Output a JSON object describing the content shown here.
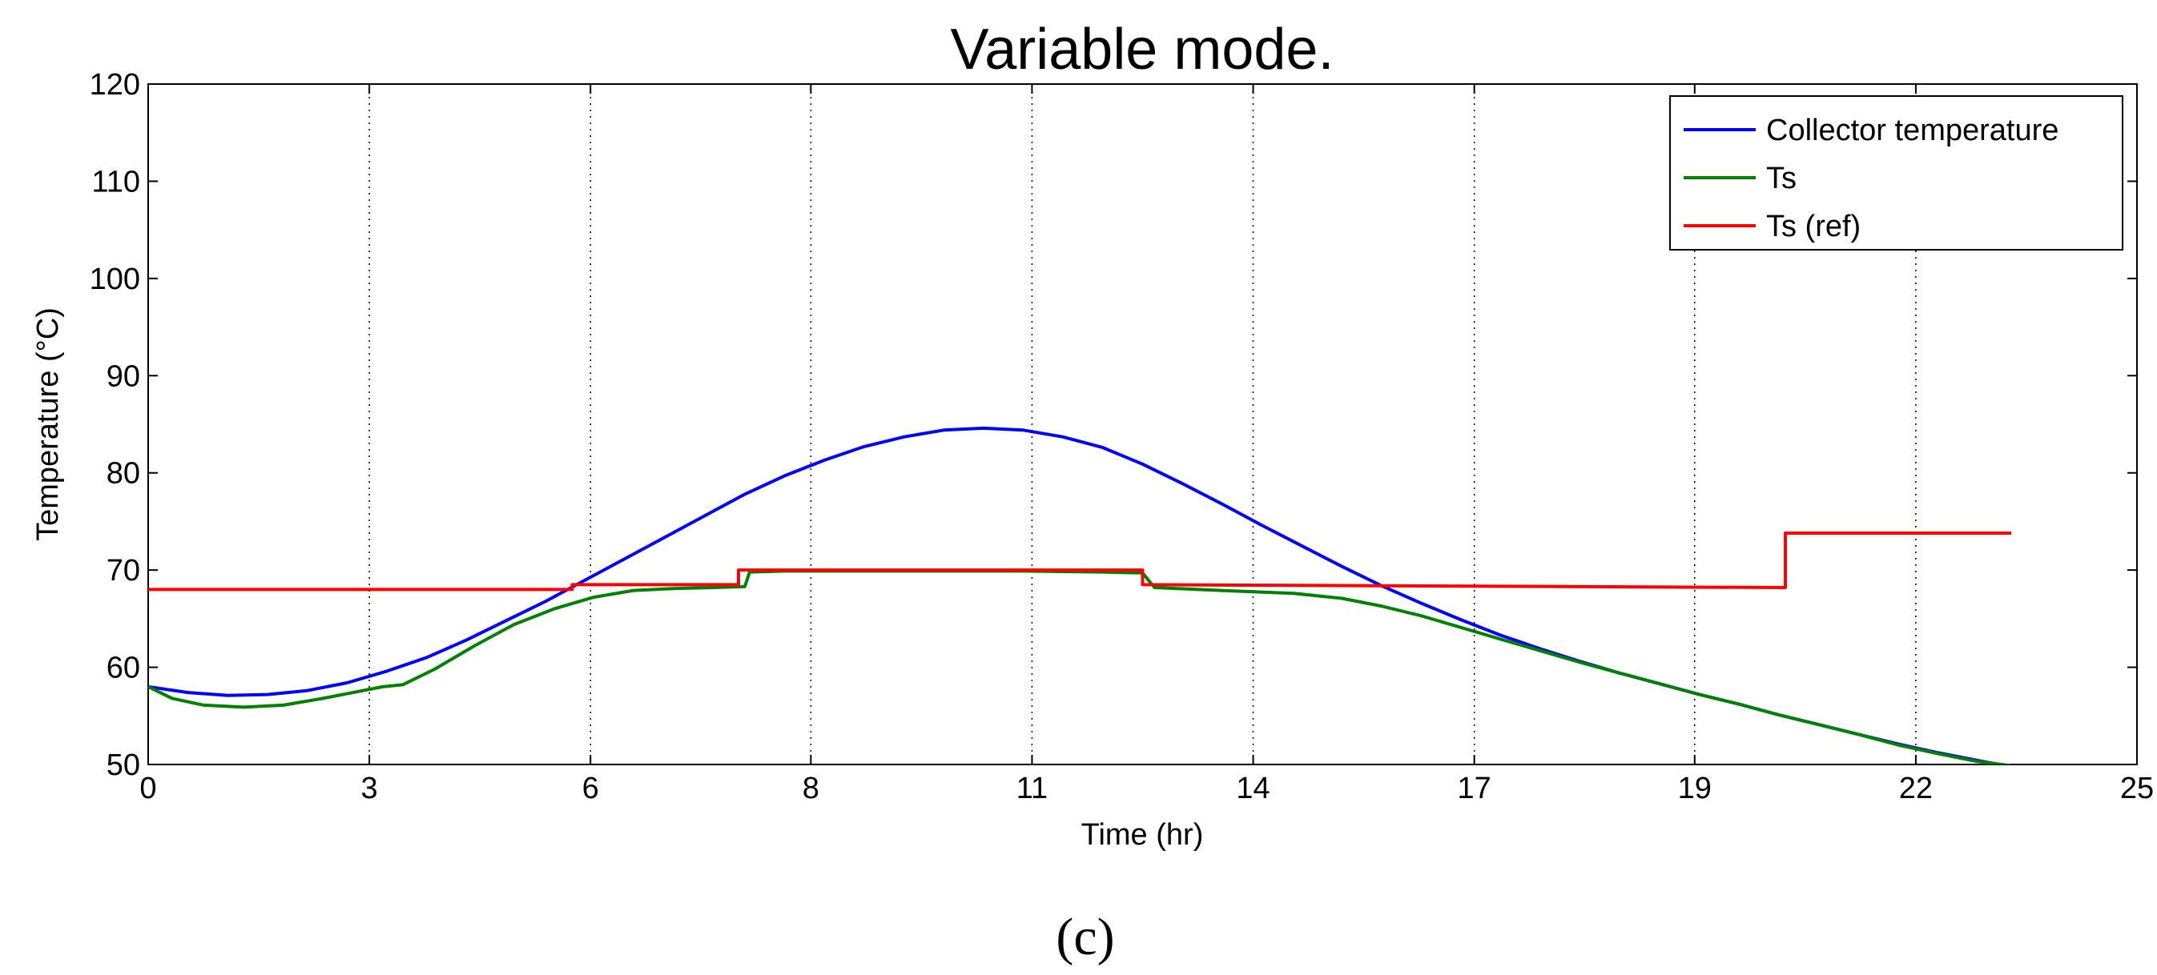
{
  "chart_data": {
    "type": "line",
    "title": "Variable mode.",
    "xlabel": "Time (hr)",
    "ylabel": "Temperature (°C)",
    "xlim": [
      0,
      25
    ],
    "ylim": [
      50,
      120
    ],
    "xticks": [
      0,
      2.78,
      5.56,
      8.33,
      11.11,
      13.89,
      16.67,
      19.44,
      22.22,
      25
    ],
    "xtick_labels": [
      "0",
      "3",
      "6",
      "8",
      "11",
      "14",
      "17",
      "19",
      "22",
      "25"
    ],
    "yticks": [
      50,
      60,
      70,
      80,
      90,
      100,
      110,
      120
    ],
    "ytick_labels": [
      "50",
      "60",
      "70",
      "80",
      "90",
      "100",
      "110",
      "120"
    ],
    "grid": "vertical-dotted",
    "legend_position": "top-right",
    "series": [
      {
        "name": "Collector temperature",
        "color": "#0000ff",
        "x": [
          0,
          0.5,
          1,
          1.5,
          2,
          2.5,
          3,
          3.5,
          4,
          4.5,
          5,
          5.5,
          6,
          6.5,
          7,
          7.5,
          8,
          8.5,
          9,
          9.5,
          10,
          10.5,
          11,
          11.5,
          12,
          12.5,
          13,
          13.5,
          14,
          14.5,
          15,
          15.5,
          16,
          16.5,
          17,
          17.5,
          18,
          18.5,
          19,
          19.5,
          20,
          20.5,
          21,
          21.5,
          22,
          22.5,
          23,
          23.4
        ],
        "y": [
          58,
          57.4,
          57.1,
          57.2,
          57.6,
          58.4,
          59.6,
          61,
          62.8,
          64.8,
          66.8,
          69,
          71.2,
          73.4,
          75.6,
          77.8,
          79.7,
          81.3,
          82.7,
          83.7,
          84.4,
          84.6,
          84.4,
          83.7,
          82.6,
          80.9,
          78.9,
          76.8,
          74.6,
          72.5,
          70.4,
          68.4,
          66.6,
          64.9,
          63.3,
          61.9,
          60.6,
          59.4,
          58.3,
          57.2,
          56.2,
          55.1,
          54.1,
          53.1,
          52.1,
          51.2,
          50.4,
          49.8
        ]
      },
      {
        "name": "Ts",
        "color": "#008000",
        "x": [
          0,
          0.3,
          0.7,
          1.2,
          1.7,
          2.2,
          2.7,
          2.95,
          3.2,
          3.6,
          4.1,
          4.6,
          5.1,
          5.6,
          6.1,
          6.6,
          7.1,
          7.5,
          7.56,
          8,
          9,
          10,
          11,
          12,
          12.5,
          12.65,
          13.2,
          13.8,
          14.4,
          15,
          15.5,
          16,
          16.5,
          17,
          17.5,
          18,
          18.5,
          19,
          19.5,
          20,
          20.5,
          21,
          21.5,
          22,
          22.5,
          23,
          23.4
        ],
        "y": [
          58,
          56.8,
          56.1,
          55.9,
          56.1,
          56.8,
          57.6,
          58,
          58.2,
          59.8,
          62.2,
          64.4,
          66,
          67.2,
          67.9,
          68.1,
          68.2,
          68.3,
          69.8,
          69.9,
          69.9,
          69.9,
          69.9,
          69.8,
          69.7,
          68.2,
          68,
          67.8,
          67.6,
          67.1,
          66.3,
          65.3,
          64.1,
          62.9,
          61.7,
          60.5,
          59.4,
          58.3,
          57.2,
          56.2,
          55.1,
          54.1,
          53.1,
          52,
          51.1,
          50.3,
          49.9
        ]
      },
      {
        "name": "Ts (ref)",
        "color": "#ff0000",
        "x": [
          0,
          5.33,
          5.33,
          7.42,
          7.42,
          12.5,
          12.5,
          20.58,
          20.58,
          23.42
        ],
        "y": [
          68,
          68,
          68.5,
          68.5,
          70,
          70,
          68.5,
          68.2,
          73.8,
          73.8
        ]
      }
    ]
  },
  "caption": "(c)"
}
